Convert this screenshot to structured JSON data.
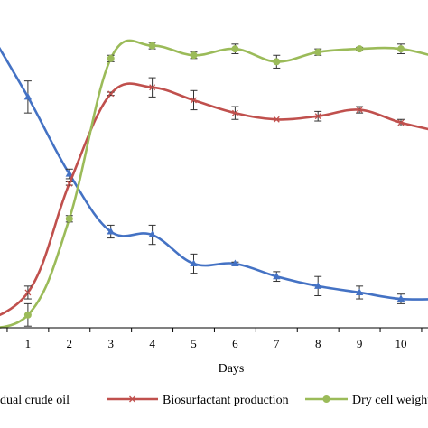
{
  "chart_data": {
    "type": "line",
    "xlabel": "Days",
    "ylabel": "",
    "x": [
      0,
      1,
      2,
      3,
      4,
      5,
      6,
      7,
      8,
      9,
      10,
      11
    ],
    "xticks": [
      "1",
      "2",
      "3",
      "4",
      "5",
      "6",
      "7",
      "8",
      "9",
      "10"
    ],
    "grid": false,
    "legend_position": "bottom",
    "series": [
      {
        "name": "dual crude oil",
        "color": "#4472C4",
        "marker": "triangle",
        "x": [
          0,
          1,
          2,
          3,
          4,
          5,
          6,
          7,
          8,
          9,
          10,
          11
        ],
        "values": [
          94,
          72,
          48,
          30,
          29,
          20,
          20,
          16,
          13,
          11,
          9,
          9
        ],
        "errors": [
          0,
          5,
          1.5,
          2,
          3,
          3,
          0.5,
          1.5,
          3,
          2,
          1.5,
          0
        ]
      },
      {
        "name": "Biosurfactant production",
        "color": "#C0504D",
        "marker": "x",
        "x": [
          -0.5,
          1,
          2,
          3,
          4,
          5,
          6,
          7,
          8,
          9,
          10,
          11
        ],
        "values": [
          0,
          11,
          45,
          73,
          75,
          71,
          67,
          65,
          66,
          68,
          64,
          61
        ],
        "errors": [
          0,
          2,
          0.5,
          0.5,
          3,
          3,
          2,
          0,
          1.5,
          1,
          1,
          0
        ]
      },
      {
        "name": "Dry cell weight",
        "color": "#9BBB59",
        "marker": "circle",
        "x": [
          -0.5,
          1,
          2,
          3,
          4,
          5,
          6,
          7,
          8,
          9,
          10,
          11
        ],
        "values": [
          0,
          4,
          34,
          84,
          88,
          85,
          87,
          83,
          86,
          87,
          87,
          84
        ],
        "errors": [
          0,
          3.5,
          1,
          1,
          1,
          1,
          1.5,
          2,
          1,
          0.5,
          1.5,
          0
        ]
      }
    ]
  }
}
